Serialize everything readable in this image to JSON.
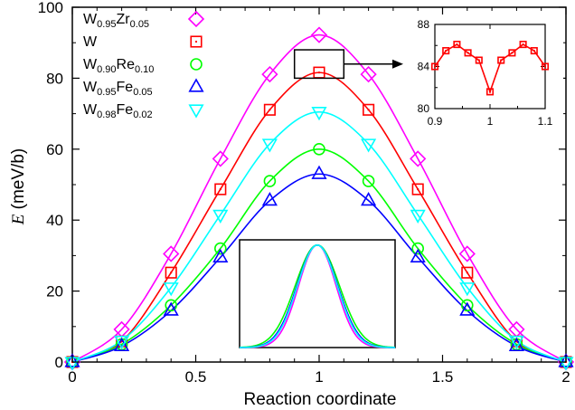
{
  "chart_data": [
    {
      "type": "line",
      "role": "main",
      "xlabel": "Reaction coordinate",
      "ylabel_italic": "E",
      "ylabel_rest": " (meV/b)",
      "xlim": [
        0,
        2
      ],
      "ylim": [
        0,
        100
      ],
      "xticks": [
        0,
        0.5,
        1,
        1.5,
        2
      ],
      "xtick_labels": [
        "0",
        "0.5",
        "1",
        "1.5",
        "2"
      ],
      "yticks": [
        0,
        20,
        40,
        60,
        80,
        100
      ],
      "ytick_labels": [
        "0",
        "20",
        "40",
        "60",
        "80",
        "100"
      ],
      "grid": false,
      "legend_position": "top-left",
      "x": [
        0,
        0.2,
        0.4,
        0.6,
        0.8,
        1.0,
        1.2,
        1.4,
        1.6,
        1.8,
        2.0
      ],
      "series": [
        {
          "name_base1": "W",
          "name_sub1": "0.95",
          "name_base2": "Zr",
          "name_sub2": "0.05",
          "color": "#ff00ff",
          "marker": "diamond",
          "values": [
            0,
            9.2,
            30.5,
            57.3,
            81.1,
            92.2,
            81.1,
            57.3,
            30.5,
            9.2,
            0
          ]
        },
        {
          "name_base1": "W",
          "name_sub1": "",
          "name_base2": "",
          "name_sub2": "",
          "color": "#ff0000",
          "marker": "square",
          "values": [
            0,
            5.8,
            25.2,
            48.7,
            71.1,
            81.6,
            71.1,
            48.7,
            25.2,
            5.8,
            0
          ]
        },
        {
          "name_base1": "W",
          "name_sub1": "0.90",
          "name_base2": "Re",
          "name_sub2": "0.10",
          "color": "#00ff00",
          "marker": "circle",
          "values": [
            0,
            5.0,
            16.0,
            32.0,
            51.0,
            60.0,
            51.0,
            32.0,
            16.0,
            5.0,
            0
          ]
        },
        {
          "name_base1": "W",
          "name_sub1": "0.95",
          "name_base2": "Fe",
          "name_sub2": "0.05",
          "color": "#0000ff",
          "marker": "triangle-up",
          "values": [
            0,
            4.5,
            14.5,
            29.5,
            45.5,
            53.0,
            45.5,
            29.5,
            14.5,
            4.5,
            0
          ]
        },
        {
          "name_base1": "W",
          "name_sub1": "0.98",
          "name_base2": "Fe",
          "name_sub2": "0.02",
          "color": "#00ffff",
          "marker": "triangle-down",
          "values": [
            0,
            6.0,
            21.0,
            41.5,
            61.5,
            70.5,
            61.5,
            41.5,
            21.0,
            6.0,
            0
          ]
        }
      ]
    },
    {
      "type": "line",
      "role": "inset-zoom",
      "xlim": [
        0.9,
        1.1
      ],
      "ylim": [
        80,
        88
      ],
      "xticks": [
        0.9,
        1,
        1.1
      ],
      "xtick_labels": [
        "0.9",
        "1",
        "1.1"
      ],
      "yticks": [
        80,
        84,
        88
      ],
      "ytick_labels": [
        "80",
        "84",
        "88"
      ],
      "minor_yticks": [
        82,
        86
      ],
      "series": [
        {
          "color": "#ff0000",
          "marker": "square",
          "x": [
            0.9,
            0.92,
            0.94,
            0.96,
            0.98,
            1.0,
            1.02,
            1.04,
            1.06,
            1.08,
            1.1
          ],
          "values": [
            84.0,
            85.5,
            86.1,
            85.3,
            84.6,
            81.6,
            84.6,
            85.3,
            86.1,
            85.5,
            84.0
          ]
        }
      ]
    },
    {
      "type": "line",
      "role": "inset-normalized",
      "xlim": [
        0,
        2
      ],
      "ylim": [
        0,
        1.05
      ],
      "series": [
        {
          "color": "#ff00ff",
          "width": 0.34
        },
        {
          "color": "#00ff00",
          "width": 0.4
        },
        {
          "color": "#0000ff",
          "width": 0.37
        },
        {
          "color": "#00ffff",
          "width": 0.36
        }
      ]
    }
  ]
}
